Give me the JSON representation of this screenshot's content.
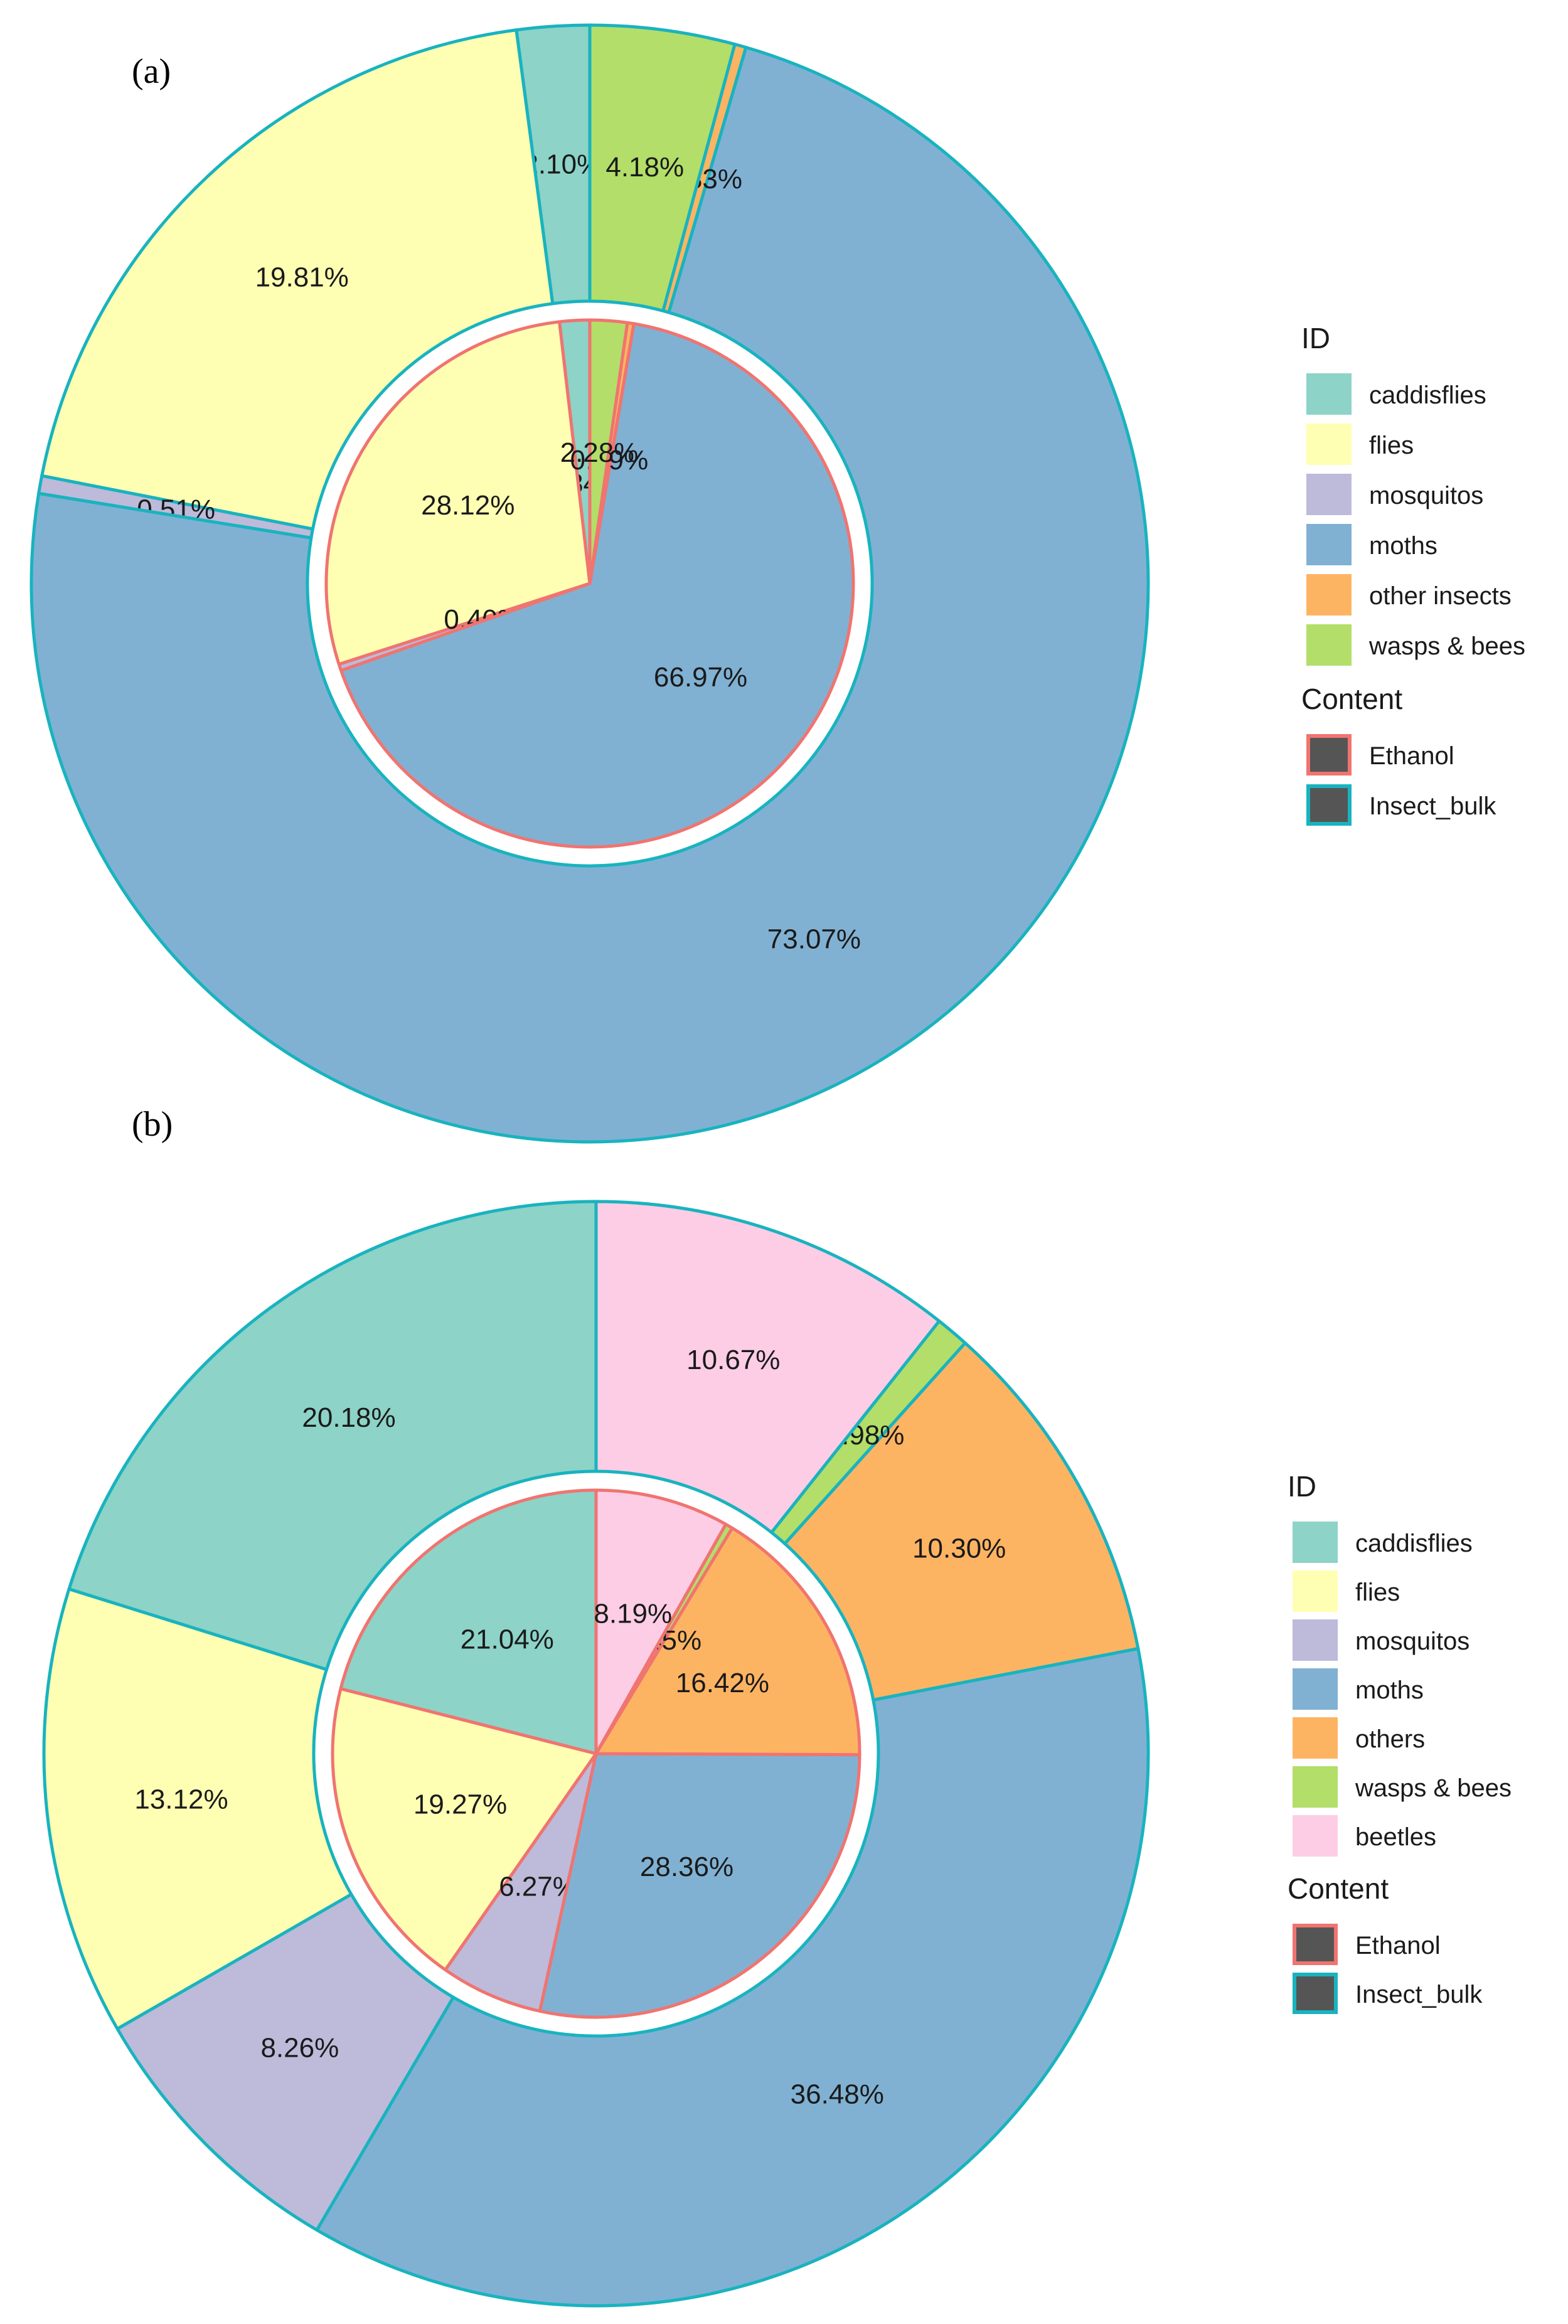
{
  "chart_data": [
    {
      "type": "pie",
      "panel_label": "(a)",
      "legend": {
        "id_title": "ID",
        "content_title": "Content",
        "id_entries": [
          {
            "label": "caddisflies",
            "color": "#8dd3c7"
          },
          {
            "label": "flies",
            "color": "#ffffb3"
          },
          {
            "label": "mosquitos",
            "color": "#bebada"
          },
          {
            "label": "moths",
            "color": "#80b1d3"
          },
          {
            "label": "other insects",
            "color": "#fdb462"
          },
          {
            "label": "wasps & bees",
            "color": "#b3de69"
          }
        ],
        "content_entries": [
          {
            "label": "Ethanol",
            "border": "#f07470"
          },
          {
            "label": "Insect_bulk",
            "border": "#19b3bf"
          }
        ]
      },
      "rings": [
        {
          "name": "Insect_bulk",
          "position": "outer",
          "border": "#19b3bf",
          "slices": [
            {
              "category": "caddisflies",
              "value": 2.1,
              "label": "2.10%"
            },
            {
              "category": "flies",
              "value": 19.81,
              "label": "19.81%"
            },
            {
              "category": "mosquitos",
              "value": 0.51,
              "label": "0.51%"
            },
            {
              "category": "moths",
              "value": 73.07,
              "label": "73.07%"
            },
            {
              "category": "other insects",
              "value": 0.33,
              "label": "0.33%"
            },
            {
              "category": "wasps & bees",
              "value": 4.18,
              "label": "4.18%"
            }
          ]
        },
        {
          "name": "Ethanol",
          "position": "inner",
          "border": "#f07470",
          "slices": [
            {
              "category": "caddisflies",
              "value": 1.84,
              "label": "1.84%"
            },
            {
              "category": "flies",
              "value": 28.12,
              "label": "28.12%"
            },
            {
              "category": "mosquitos",
              "value": 0.4,
              "label": "0.40%"
            },
            {
              "category": "moths",
              "value": 66.97,
              "label": "66.97%"
            },
            {
              "category": "other insects",
              "value": 0.39,
              "label": "0.39%"
            },
            {
              "category": "wasps & bees",
              "value": 2.28,
              "label": "2.28%"
            }
          ]
        }
      ]
    },
    {
      "type": "pie",
      "panel_label": "(b)",
      "legend": {
        "id_title": "ID",
        "content_title": "Content",
        "id_entries": [
          {
            "label": "caddisflies",
            "color": "#8dd3c7"
          },
          {
            "label": "flies",
            "color": "#ffffb3"
          },
          {
            "label": "mosquitos",
            "color": "#bebada"
          },
          {
            "label": "moths",
            "color": "#80b1d3"
          },
          {
            "label": "others",
            "color": "#fdb462"
          },
          {
            "label": "wasps & bees",
            "color": "#b3de69"
          },
          {
            "label": "beetles",
            "color": "#fccde5"
          }
        ],
        "content_entries": [
          {
            "label": "Ethanol",
            "border": "#f07470"
          },
          {
            "label": "Insect_bulk",
            "border": "#19b3bf"
          }
        ]
      },
      "rings": [
        {
          "name": "Insect_bulk",
          "position": "outer",
          "border": "#19b3bf",
          "slices": [
            {
              "category": "caddisflies",
              "value": 20.18,
              "label": "20.18%"
            },
            {
              "category": "flies",
              "value": 13.12,
              "label": "13.12%"
            },
            {
              "category": "mosquitos",
              "value": 8.26,
              "label": "8.26%"
            },
            {
              "category": "moths",
              "value": 36.48,
              "label": "36.48%"
            },
            {
              "category": "others",
              "value": 10.3,
              "label": "10.30%"
            },
            {
              "category": "wasps & bees",
              "value": 0.98,
              "label": "0.98%"
            },
            {
              "category": "beetles",
              "value": 10.67,
              "label": "10.67%"
            }
          ]
        },
        {
          "name": "Ethanol",
          "position": "inner",
          "border": "#f07470",
          "slices": [
            {
              "category": "caddisflies",
              "value": 21.04,
              "label": "21.04%"
            },
            {
              "category": "flies",
              "value": 19.27,
              "label": "19.27%"
            },
            {
              "category": "mosquitos",
              "value": 6.27,
              "label": "6.27%"
            },
            {
              "category": "moths",
              "value": 28.36,
              "label": "28.36%"
            },
            {
              "category": "others",
              "value": 16.42,
              "label": "16.42%"
            },
            {
              "category": "wasps & bees",
              "value": 0.45,
              "label": "0.45%"
            },
            {
              "category": "beetles",
              "value": 8.19,
              "label": "8.19%"
            }
          ]
        }
      ]
    }
  ]
}
